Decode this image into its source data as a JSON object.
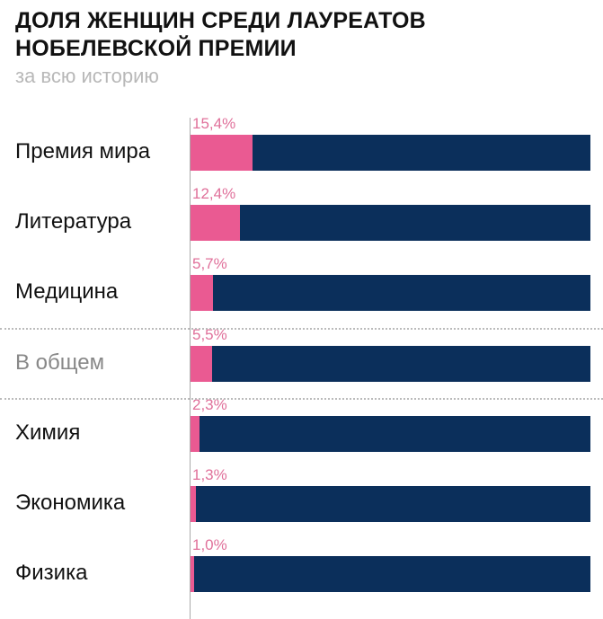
{
  "chart_data": {
    "type": "bar",
    "orientation": "horizontal",
    "stacked_to_100": true,
    "title": "ДОЛЯ ЖЕНЩИН СРЕДИ ЛАУРЕАТОВ НОБЕЛЕВСКОЙ ПРЕМИИ",
    "subtitle": "за всю историю",
    "categories": [
      "Премия мира",
      "Литература",
      "Медицина",
      "В общем",
      "Химия",
      "Экономика",
      "Физика"
    ],
    "values": [
      15.4,
      12.4,
      5.7,
      5.5,
      2.3,
      1.3,
      1.0
    ],
    "value_labels": [
      "15,4%",
      "12,4%",
      "5,7%",
      "5,5%",
      "2,3%",
      "1,3%",
      "1,0%"
    ],
    "highlight_category": "В общем",
    "xlim": [
      0,
      100
    ],
    "colors": {
      "women": "#ea5a92",
      "remainder": "#0b2f5b",
      "value_label": "#e0709a"
    }
  }
}
